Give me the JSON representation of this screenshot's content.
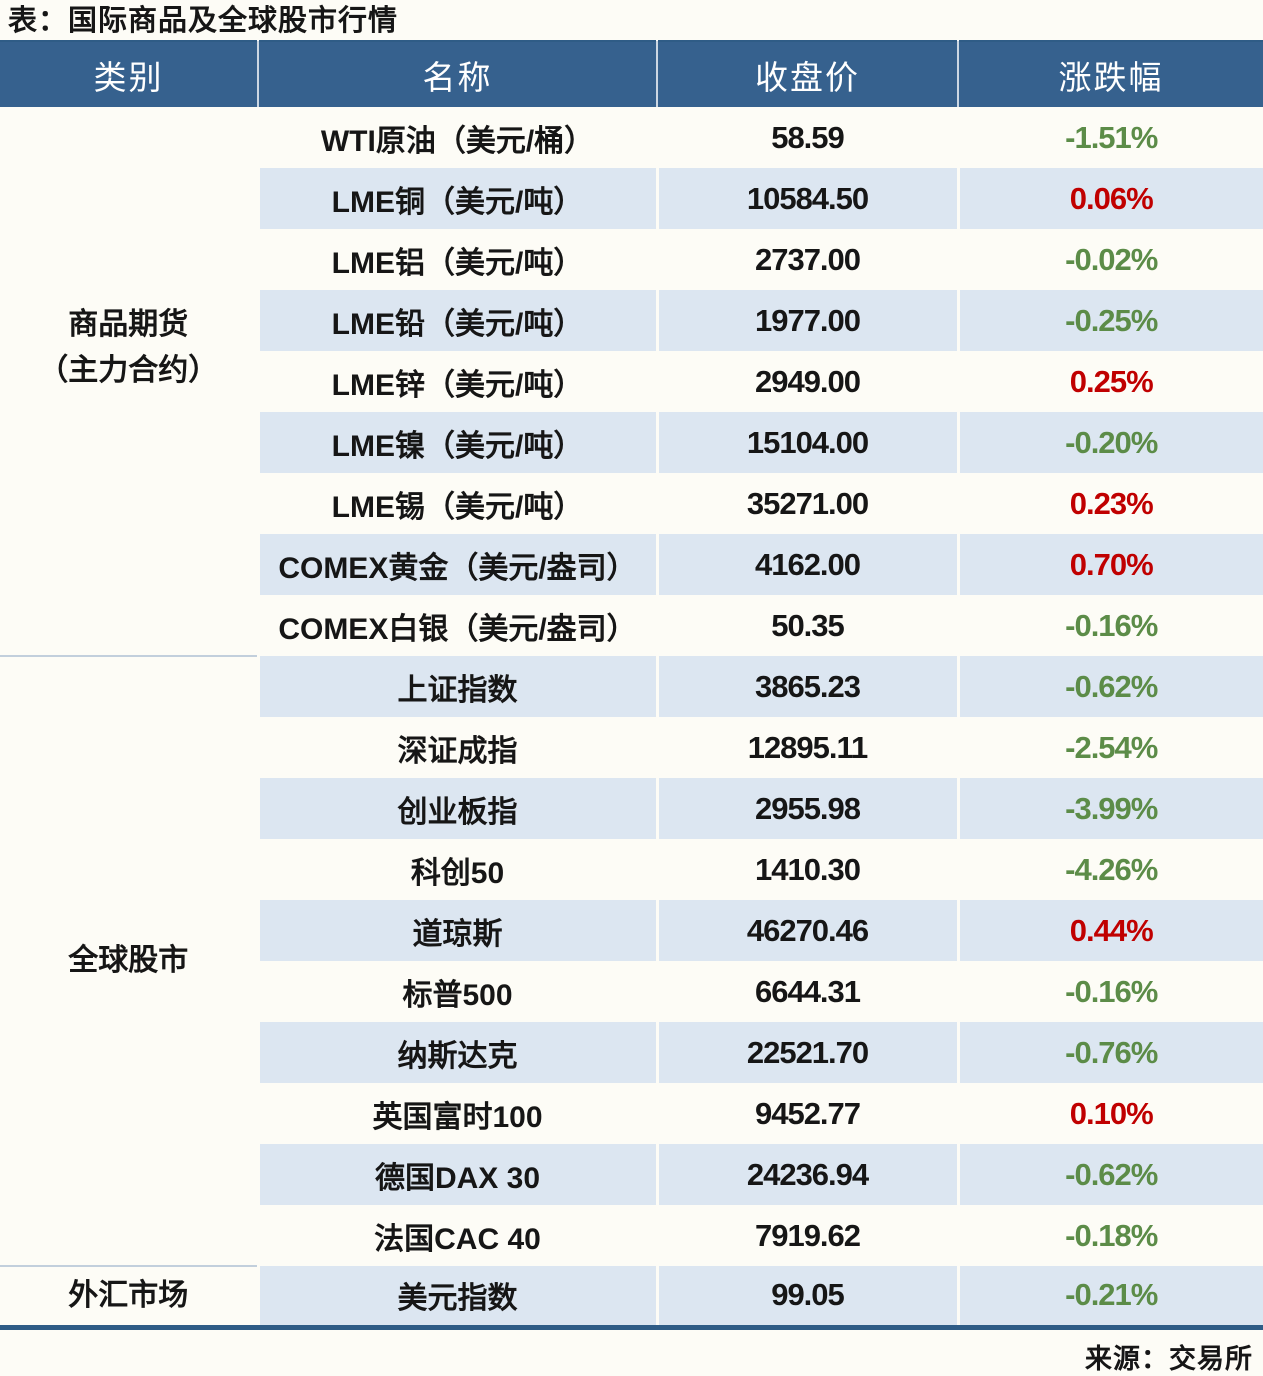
{
  "title": "表：国际商品及全球股市行情",
  "source": "来源：交易所",
  "colors": {
    "header_bg": "#36618E",
    "row_alt": "#DCE6F1",
    "row_plain": "#FDFCF6",
    "up": "#C00000",
    "down": "#5C8C48",
    "border_dark": "#2F5C86",
    "divider": "#C2CFDC"
  },
  "table": {
    "headers": [
      "类别",
      "名称",
      "收盘价",
      "涨跌幅"
    ],
    "groups": [
      {
        "category": "商品期货\n（主力合约）",
        "rows": [
          {
            "name": "WTI原油（美元/桶）",
            "close": "58.59",
            "change": "-1.51%",
            "dir": "down"
          },
          {
            "name": "LME铜（美元/吨）",
            "close": "10584.50",
            "change": "0.06%",
            "dir": "up"
          },
          {
            "name": "LME铝（美元/吨）",
            "close": "2737.00",
            "change": "-0.02%",
            "dir": "down"
          },
          {
            "name": "LME铅（美元/吨）",
            "close": "1977.00",
            "change": "-0.25%",
            "dir": "down"
          },
          {
            "name": "LME锌（美元/吨）",
            "close": "2949.00",
            "change": "0.25%",
            "dir": "up"
          },
          {
            "name": "LME镍（美元/吨）",
            "close": "15104.00",
            "change": "-0.20%",
            "dir": "down"
          },
          {
            "name": "LME锡（美元/吨）",
            "close": "35271.00",
            "change": "0.23%",
            "dir": "up"
          },
          {
            "name": "COMEX黄金（美元/盎司）",
            "close": "4162.00",
            "change": "0.70%",
            "dir": "up"
          },
          {
            "name": "COMEX白银（美元/盎司）",
            "close": "50.35",
            "change": "-0.16%",
            "dir": "down"
          }
        ]
      },
      {
        "category": "全球股市",
        "rows": [
          {
            "name": "上证指数",
            "close": "3865.23",
            "change": "-0.62%",
            "dir": "down"
          },
          {
            "name": "深证成指",
            "close": "12895.11",
            "change": "-2.54%",
            "dir": "down"
          },
          {
            "name": "创业板指",
            "close": "2955.98",
            "change": "-3.99%",
            "dir": "down"
          },
          {
            "name": "科创50",
            "close": "1410.30",
            "change": "-4.26%",
            "dir": "down"
          },
          {
            "name": "道琼斯",
            "close": "46270.46",
            "change": "0.44%",
            "dir": "up"
          },
          {
            "name": "标普500",
            "close": "6644.31",
            "change": "-0.16%",
            "dir": "down"
          },
          {
            "name": "纳斯达克",
            "close": "22521.70",
            "change": "-0.76%",
            "dir": "down"
          },
          {
            "name": "英国富时100",
            "close": "9452.77",
            "change": "0.10%",
            "dir": "up"
          },
          {
            "name": "德国DAX 30",
            "close": "24236.94",
            "change": "-0.62%",
            "dir": "down"
          },
          {
            "name": "法国CAC 40",
            "close": "7919.62",
            "change": "-0.18%",
            "dir": "down"
          }
        ]
      },
      {
        "category": "外汇市场",
        "rows": [
          {
            "name": "美元指数",
            "close": "99.05",
            "change": "-0.21%",
            "dir": "down"
          }
        ]
      }
    ]
  }
}
